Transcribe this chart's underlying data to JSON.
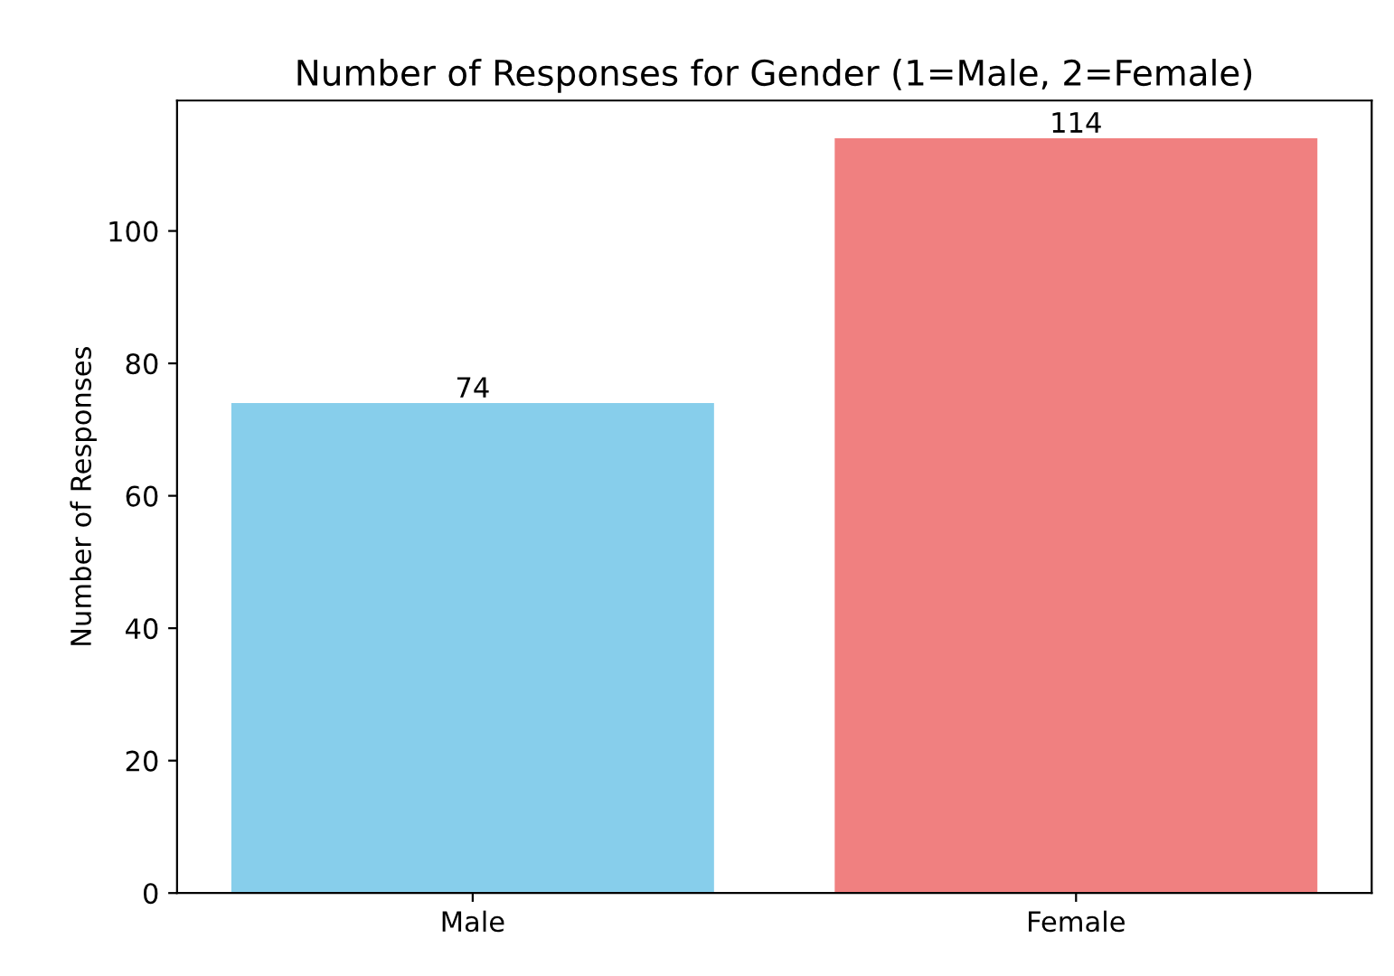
{
  "chart_data": {
    "type": "bar",
    "title": "Number of Responses for Gender (1=Male, 2=Female)",
    "ylabel": "Number of Responses",
    "categories": [
      "Male",
      "Female"
    ],
    "values": [
      74,
      114
    ],
    "colors": [
      "#87ceeb",
      "#f08080"
    ],
    "ylim": [
      0,
      119.7
    ],
    "yticks": [
      0,
      20,
      40,
      60,
      80,
      100
    ],
    "data_labels": true,
    "grid": false
  }
}
